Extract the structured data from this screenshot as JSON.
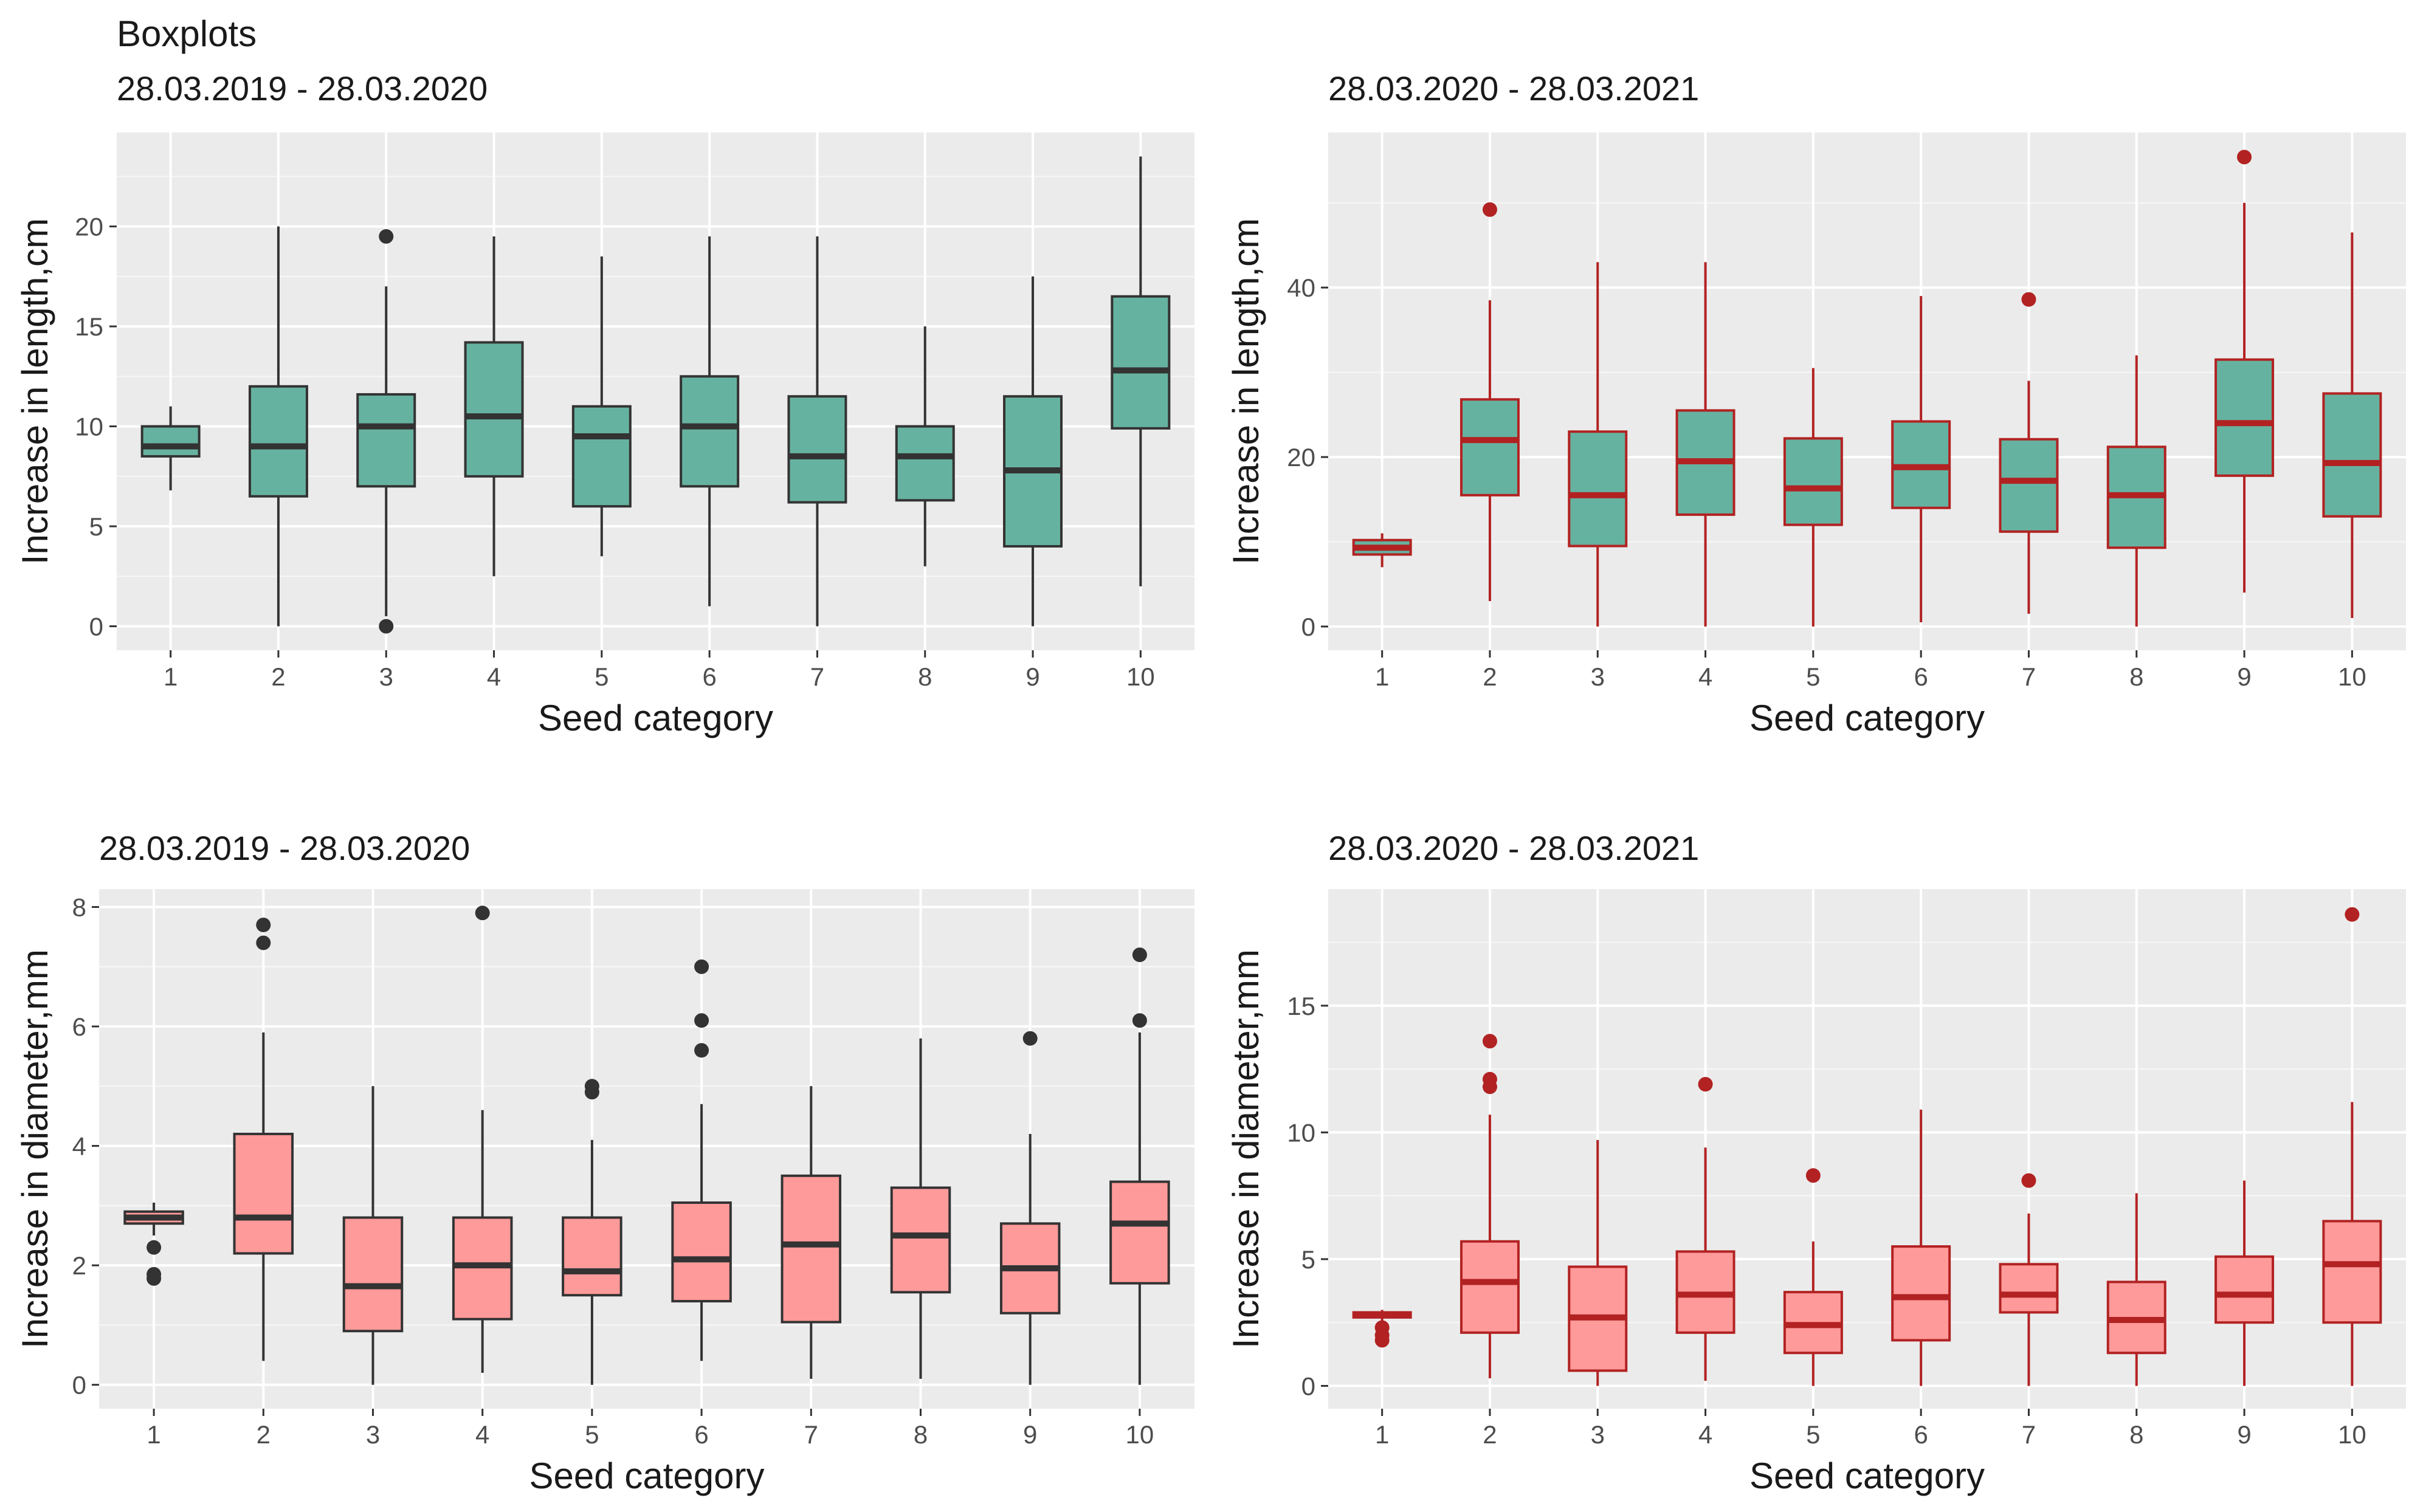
{
  "figure_title": "Boxplots",
  "chart_data": [
    {
      "type": "boxplot",
      "subtitle": "28.03.2019 - 28.03.2020",
      "xlabel": "Seed category",
      "ylabel": "Increase in length,cm",
      "categories": [
        "1",
        "2",
        "3",
        "4",
        "5",
        "6",
        "7",
        "8",
        "9",
        "10"
      ],
      "ylim": [
        -1.2,
        24.7
      ],
      "yticks": [
        0,
        5,
        10,
        15,
        20
      ],
      "fill": "#66b2a0",
      "line": "#333333",
      "boxes": [
        {
          "min": 6.8,
          "q1": 8.5,
          "median": 9.0,
          "q3": 10.0,
          "max": 11.0,
          "outliers": []
        },
        {
          "min": 0.0,
          "q1": 6.5,
          "median": 9.0,
          "q3": 12.0,
          "max": 20.0,
          "outliers": []
        },
        {
          "min": 0.5,
          "q1": 7.0,
          "median": 10.0,
          "q3": 11.6,
          "max": 17.0,
          "outliers": [
            19.5,
            0.0
          ]
        },
        {
          "min": 2.5,
          "q1": 7.5,
          "median": 10.5,
          "q3": 14.2,
          "max": 19.5,
          "outliers": []
        },
        {
          "min": 3.5,
          "q1": 6.0,
          "median": 9.5,
          "q3": 11.0,
          "max": 18.5,
          "outliers": []
        },
        {
          "min": 1.0,
          "q1": 7.0,
          "median": 10.0,
          "q3": 12.5,
          "max": 19.5,
          "outliers": []
        },
        {
          "min": 0.0,
          "q1": 6.2,
          "median": 8.5,
          "q3": 11.5,
          "max": 19.5,
          "outliers": []
        },
        {
          "min": 3.0,
          "q1": 6.3,
          "median": 8.5,
          "q3": 10.0,
          "max": 15.0,
          "outliers": []
        },
        {
          "min": 0.0,
          "q1": 4.0,
          "median": 7.8,
          "q3": 11.5,
          "max": 17.5,
          "outliers": []
        },
        {
          "min": 2.0,
          "q1": 9.9,
          "median": 12.8,
          "q3": 16.5,
          "max": 23.5,
          "outliers": []
        }
      ]
    },
    {
      "type": "boxplot",
      "subtitle": "28.03.2020 - 28.03.2021",
      "xlabel": "Seed category",
      "ylabel": "Increase in length,cm",
      "categories": [
        "1",
        "2",
        "3",
        "4",
        "5",
        "6",
        "7",
        "8",
        "9",
        "10"
      ],
      "ylim": [
        -2.8,
        58.3
      ],
      "yticks": [
        0,
        20,
        40
      ],
      "fill": "#66b2a0",
      "line": "#b22222",
      "boxes": [
        {
          "min": 7.0,
          "q1": 8.5,
          "median": 9.3,
          "q3": 10.2,
          "max": 11.0,
          "outliers": []
        },
        {
          "min": 3.0,
          "q1": 15.5,
          "median": 22.0,
          "q3": 26.8,
          "max": 38.5,
          "outliers": [
            49.2
          ]
        },
        {
          "min": 0.0,
          "q1": 9.5,
          "median": 15.5,
          "q3": 23.0,
          "max": 43.0,
          "outliers": []
        },
        {
          "min": 0.0,
          "q1": 13.2,
          "median": 19.5,
          "q3": 25.5,
          "max": 43.0,
          "outliers": []
        },
        {
          "min": 0.0,
          "q1": 12.0,
          "median": 16.3,
          "q3": 22.2,
          "max": 30.5,
          "outliers": []
        },
        {
          "min": 0.5,
          "q1": 14.0,
          "median": 18.8,
          "q3": 24.2,
          "max": 39.0,
          "outliers": []
        },
        {
          "min": 1.5,
          "q1": 11.2,
          "median": 17.2,
          "q3": 22.1,
          "max": 29.0,
          "outliers": [
            38.6
          ]
        },
        {
          "min": 0.0,
          "q1": 9.3,
          "median": 15.5,
          "q3": 21.2,
          "max": 32.0,
          "outliers": []
        },
        {
          "min": 4.0,
          "q1": 17.8,
          "median": 24.0,
          "q3": 31.5,
          "max": 50.0,
          "outliers": [
            55.4
          ]
        },
        {
          "min": 1.0,
          "q1": 13.0,
          "median": 19.3,
          "q3": 27.5,
          "max": 46.5,
          "outliers": []
        }
      ]
    },
    {
      "type": "boxplot",
      "subtitle": "28.03.2019 - 28.03.2020",
      "xlabel": "Seed category",
      "ylabel": "Increase in diameter,mm",
      "categories": [
        "1",
        "2",
        "3",
        "4",
        "5",
        "6",
        "7",
        "8",
        "9",
        "10"
      ],
      "ylim": [
        -0.4,
        8.3
      ],
      "yticks": [
        0,
        2,
        4,
        6,
        8
      ],
      "fill": "#ff9a9a",
      "line": "#333333",
      "boxes": [
        {
          "min": 2.5,
          "q1": 2.7,
          "median": 2.8,
          "q3": 2.9,
          "max": 3.05,
          "outliers": [
            2.3,
            1.85,
            1.78
          ]
        },
        {
          "min": 0.4,
          "q1": 2.2,
          "median": 2.8,
          "q3": 4.2,
          "max": 5.9,
          "outliers": [
            7.4,
            7.7
          ]
        },
        {
          "min": 0.0,
          "q1": 0.9,
          "median": 1.65,
          "q3": 2.8,
          "max": 5.0,
          "outliers": []
        },
        {
          "min": 0.2,
          "q1": 1.1,
          "median": 2.0,
          "q3": 2.8,
          "max": 4.6,
          "outliers": [
            7.9
          ]
        },
        {
          "min": 0.0,
          "q1": 1.5,
          "median": 1.9,
          "q3": 2.8,
          "max": 4.1,
          "outliers": [
            4.9,
            5.0
          ]
        },
        {
          "min": 0.4,
          "q1": 1.4,
          "median": 2.1,
          "q3": 3.05,
          "max": 4.7,
          "outliers": [
            5.6,
            6.1,
            7.0
          ]
        },
        {
          "min": 0.1,
          "q1": 1.05,
          "median": 2.35,
          "q3": 3.5,
          "max": 5.0,
          "outliers": []
        },
        {
          "min": 0.1,
          "q1": 1.55,
          "median": 2.5,
          "q3": 3.3,
          "max": 5.8,
          "outliers": []
        },
        {
          "min": 0.0,
          "q1": 1.2,
          "median": 1.95,
          "q3": 2.7,
          "max": 4.2,
          "outliers": [
            5.8
          ]
        },
        {
          "min": 0.0,
          "q1": 1.7,
          "median": 2.7,
          "q3": 3.4,
          "max": 5.9,
          "outliers": [
            6.1,
            7.2
          ]
        }
      ]
    },
    {
      "type": "boxplot",
      "subtitle": "28.03.2020 - 28.03.2021",
      "xlabel": "Seed category",
      "ylabel": "Increase in diameter,mm",
      "categories": [
        "1",
        "2",
        "3",
        "4",
        "5",
        "6",
        "7",
        "8",
        "9",
        "10"
      ],
      "ylim": [
        -0.9,
        19.6
      ],
      "yticks": [
        0,
        5,
        10,
        15
      ],
      "fill": "#ff9a9a",
      "line": "#b22222",
      "boxes": [
        {
          "min": 2.4,
          "q1": 2.7,
          "median": 2.8,
          "q3": 2.9,
          "max": 3.0,
          "outliers": [
            2.3,
            2.0,
            1.8
          ]
        },
        {
          "min": 0.3,
          "q1": 2.1,
          "median": 4.1,
          "q3": 5.7,
          "max": 10.7,
          "outliers": [
            11.8,
            12.1,
            13.6
          ]
        },
        {
          "min": 0.0,
          "q1": 0.6,
          "median": 2.7,
          "q3": 4.7,
          "max": 9.7,
          "outliers": []
        },
        {
          "min": 0.2,
          "q1": 2.1,
          "median": 3.6,
          "q3": 5.3,
          "max": 9.4,
          "outliers": [
            11.9
          ]
        },
        {
          "min": 0.0,
          "q1": 1.3,
          "median": 2.4,
          "q3": 3.7,
          "max": 5.7,
          "outliers": [
            8.3
          ]
        },
        {
          "min": 0.0,
          "q1": 1.8,
          "median": 3.5,
          "q3": 5.5,
          "max": 10.9,
          "outliers": []
        },
        {
          "min": 0.0,
          "q1": 2.9,
          "median": 3.6,
          "q3": 4.8,
          "max": 6.8,
          "outliers": [
            8.1
          ]
        },
        {
          "min": 0.0,
          "q1": 1.3,
          "median": 2.6,
          "q3": 4.1,
          "max": 7.6,
          "outliers": []
        },
        {
          "min": 0.0,
          "q1": 2.5,
          "median": 3.6,
          "q3": 5.1,
          "max": 8.1,
          "outliers": []
        },
        {
          "min": 0.0,
          "q1": 2.5,
          "median": 4.8,
          "q3": 6.5,
          "max": 11.2,
          "outliers": [
            18.6
          ]
        }
      ]
    }
  ]
}
